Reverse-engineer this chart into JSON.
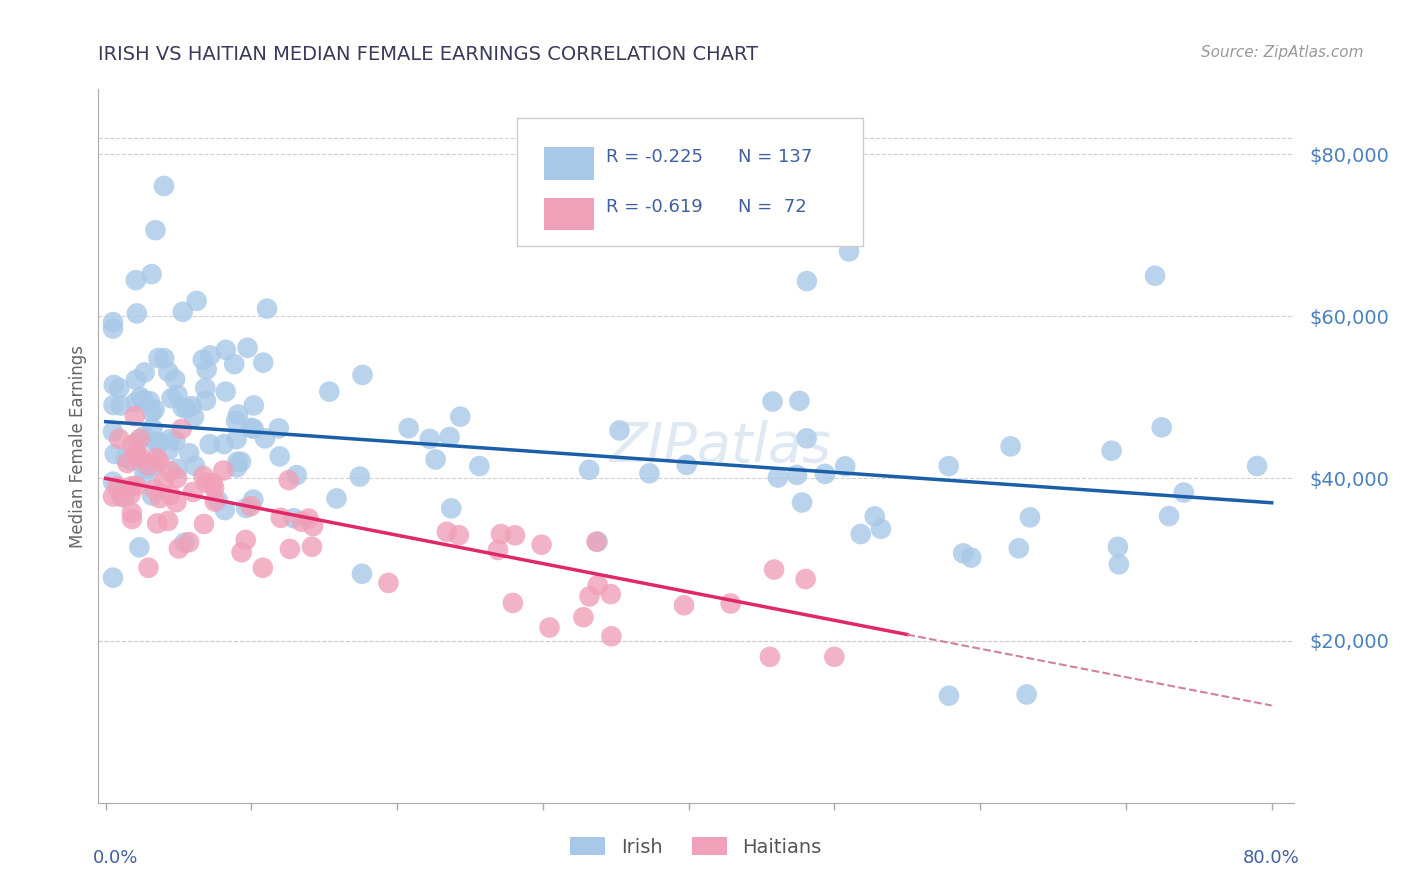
{
  "title": "IRISH VS HAITIAN MEDIAN FEMALE EARNINGS CORRELATION CHART",
  "source": "Source: ZipAtlas.com",
  "ylabel": "Median Female Earnings",
  "ytick_values": [
    20000,
    40000,
    60000,
    80000
  ],
  "ymin": 0,
  "ymax": 88000,
  "xmin": 0.0,
  "xmax": 0.8,
  "irish_color": "#a8c8e8",
  "haitian_color": "#f0a0b8",
  "irish_line_color": "#1a5fa8",
  "haitian_line_color": "#e02868",
  "haitian_line_dashed_color": "#d080a0",
  "grid_color": "#cccccc",
  "title_color": "#3a3a5a",
  "axis_label_color": "#4060a0",
  "ytick_color": "#4a80c0",
  "legend_irish_R": "-0.225",
  "legend_irish_N": "137",
  "legend_haitian_R": "-0.619",
  "legend_haitian_N": "72",
  "watermark": "ZIPatlas",
  "background_color": "#ffffff"
}
